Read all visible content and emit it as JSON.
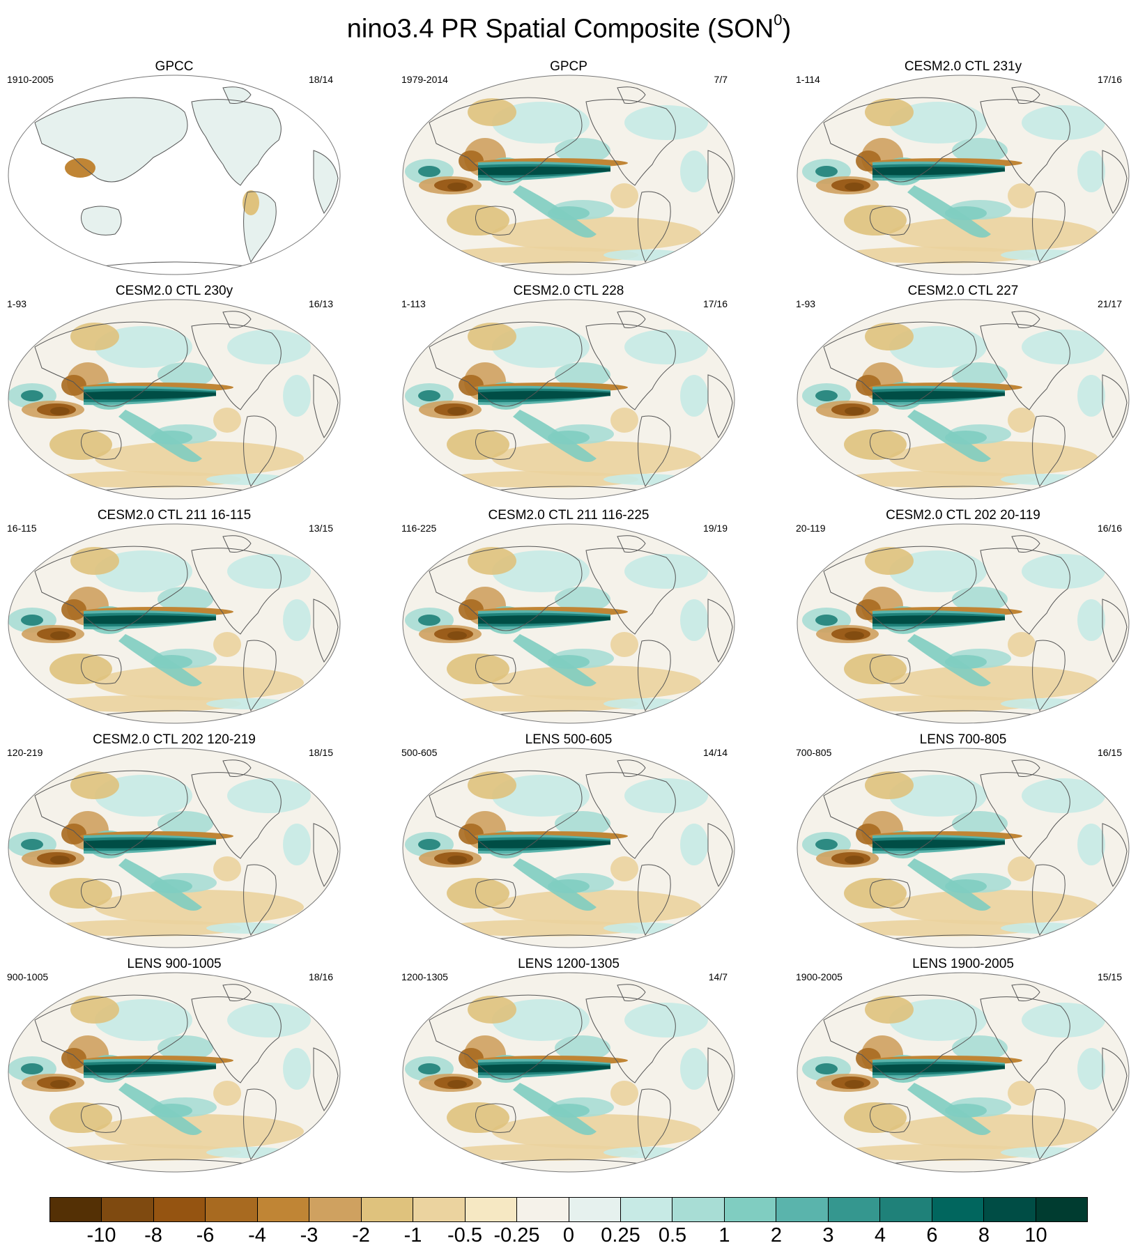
{
  "title": "nino3.4 PR Spatial Composite (SON",
  "title_sup": "0",
  "title_close": ")",
  "panels": [
    {
      "name": "GPCC",
      "period": "1910-2005",
      "count": "18/14",
      "land_only": true
    },
    {
      "name": "GPCP",
      "period": "1979-2014",
      "count": "7/7",
      "land_only": false
    },
    {
      "name": "CESM2.0 CTL 231y",
      "period": "1-114",
      "count": "17/16",
      "land_only": false
    },
    {
      "name": "CESM2.0 CTL 230y",
      "period": "1-93",
      "count": "16/13",
      "land_only": false
    },
    {
      "name": "CESM2.0 CTL 228",
      "period": "1-113",
      "count": "17/16",
      "land_only": false
    },
    {
      "name": "CESM2.0 CTL 227",
      "period": "1-93",
      "count": "21/17",
      "land_only": false
    },
    {
      "name": "CESM2.0 CTL 211 16-115",
      "period": "16-115",
      "count": "13/15",
      "land_only": false
    },
    {
      "name": "CESM2.0 CTL 211 116-225",
      "period": "116-225",
      "count": "19/19",
      "land_only": false
    },
    {
      "name": "CESM2.0 CTL 202 20-119",
      "period": "20-119",
      "count": "16/16",
      "land_only": false
    },
    {
      "name": "CESM2.0 CTL 202 120-219",
      "period": "120-219",
      "count": "18/15",
      "land_only": false
    },
    {
      "name": "LENS 500-605",
      "period": "500-605",
      "count": "14/14",
      "land_only": false
    },
    {
      "name": "LENS 700-805",
      "period": "700-805",
      "count": "16/15",
      "land_only": false
    },
    {
      "name": "LENS 900-1005",
      "period": "900-1005",
      "count": "18/16",
      "land_only": false
    },
    {
      "name": "LENS 1200-1305",
      "period": "1200-1305",
      "count": "14/7",
      "land_only": false
    },
    {
      "name": "LENS 1900-2005",
      "period": "1900-2005",
      "count": "15/15",
      "land_only": false
    }
  ],
  "colorbar": {
    "colors": [
      "#543005",
      "#7f4a10",
      "#955411",
      "#a86a20",
      "#c08535",
      "#cfa160",
      "#dfc27d",
      "#ebd39f",
      "#f6e8c3",
      "#f5f2ea",
      "#e6f1ee",
      "#c7eae5",
      "#a8ddd5",
      "#80cdc1",
      "#5ab4ac",
      "#35978f",
      "#1f8179",
      "#01665e",
      "#004d45",
      "#003c30"
    ],
    "labels": [
      "-10",
      "-8",
      "-6",
      "-4",
      "-3",
      "-2",
      "-1",
      "-0.5",
      "-0.25",
      "0",
      "0.25",
      "0.5",
      "1",
      "2",
      "3",
      "4",
      "6",
      "8",
      "10"
    ]
  },
  "map_colors": {
    "ocean": "#f5f2ea",
    "coast": "#555555",
    "border": "#777777"
  }
}
